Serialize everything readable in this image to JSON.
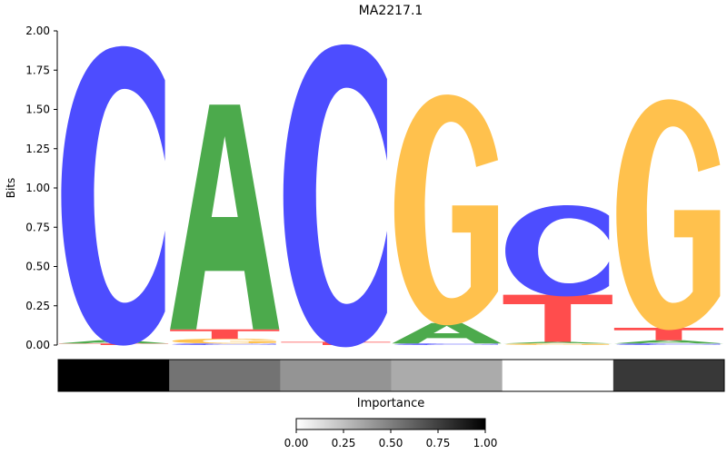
{
  "chart_data": {
    "type": "sequence-logo",
    "title": "MA2217.1",
    "ylabel": "Bits",
    "ylim": [
      0,
      2.0
    ],
    "yticks": [
      "0.00",
      "0.25",
      "0.50",
      "0.75",
      "1.00",
      "1.25",
      "1.50",
      "1.75",
      "2.00"
    ],
    "positions": [
      {
        "position": 1,
        "letters": [
          {
            "base": "T",
            "bits": 0.01
          },
          {
            "base": "A",
            "bits": 0.02
          },
          {
            "base": "C",
            "bits": 1.84
          }
        ]
      },
      {
        "position": 2,
        "letters": [
          {
            "base": "C",
            "bits": 0.01
          },
          {
            "base": "G",
            "bits": 0.03
          },
          {
            "base": "T",
            "bits": 0.06
          },
          {
            "base": "A",
            "bits": 1.43
          }
        ]
      },
      {
        "position": 3,
        "letters": [
          {
            "base": "T",
            "bits": 0.02
          },
          {
            "base": "C",
            "bits": 1.86
          }
        ]
      },
      {
        "position": 4,
        "letters": [
          {
            "base": "C",
            "bits": 0.01
          },
          {
            "base": "A",
            "bits": 0.13
          },
          {
            "base": "G",
            "bits": 1.44
          }
        ]
      },
      {
        "position": 5,
        "letters": [
          {
            "base": "G",
            "bits": 0.01
          },
          {
            "base": "A",
            "bits": 0.01
          },
          {
            "base": "T",
            "bits": 0.3
          },
          {
            "base": "C",
            "bits": 0.56
          }
        ]
      },
      {
        "position": 6,
        "letters": [
          {
            "base": "C",
            "bits": 0.01
          },
          {
            "base": "A",
            "bits": 0.02
          },
          {
            "base": "T",
            "bits": 0.08
          },
          {
            "base": "G",
            "bits": 1.44
          }
        ]
      }
    ],
    "importance": {
      "label": "Importance",
      "values": [
        1.0,
        0.55,
        0.42,
        0.33,
        0.0,
        0.78
      ],
      "colormap": "gray",
      "colorbar_ticks": [
        "0.00",
        "0.25",
        "0.50",
        "0.75",
        "1.00"
      ]
    },
    "colors": {
      "A": "#4caa4c",
      "C": "#4d4dff",
      "G": "#ffc14d",
      "T": "#ff4d4d"
    }
  }
}
